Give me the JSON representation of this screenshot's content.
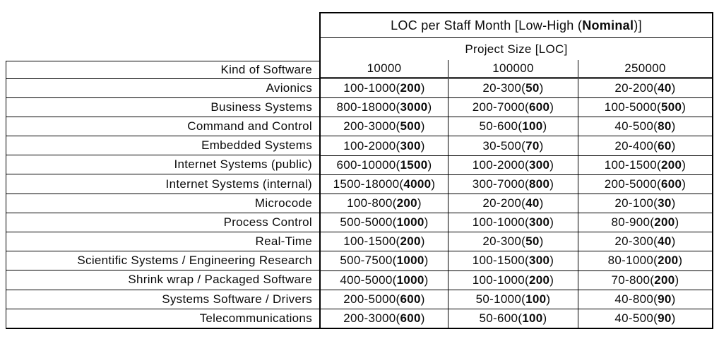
{
  "table": {
    "title": {
      "prefix": "LOC per Staff Month [Low-High (",
      "bold": "Nominal",
      "suffix": ")]"
    },
    "subtitle": "Project Size [LOC]",
    "corner_header": "Kind of Software",
    "size_columns": [
      "10000",
      "100000",
      "250000"
    ],
    "rows": [
      {
        "label": "Avionics",
        "cells": [
          {
            "range": "100-1000",
            "nominal": "200"
          },
          {
            "range": "20-300",
            "nominal": "50"
          },
          {
            "range": "20-200",
            "nominal": "40"
          }
        ]
      },
      {
        "label": "Business Systems",
        "cells": [
          {
            "range": "800-18000",
            "nominal": "3000"
          },
          {
            "range": "200-7000",
            "nominal": "600"
          },
          {
            "range": "100-5000",
            "nominal": "500"
          }
        ]
      },
      {
        "label": "Command and Control",
        "cells": [
          {
            "range": "200-3000",
            "nominal": "500"
          },
          {
            "range": "50-600",
            "nominal": "100"
          },
          {
            "range": "40-500",
            "nominal": "80"
          }
        ]
      },
      {
        "label": "Embedded Systems",
        "cells": [
          {
            "range": "100-2000",
            "nominal": "300"
          },
          {
            "range": "30-500",
            "nominal": "70"
          },
          {
            "range": "20-400",
            "nominal": "60"
          }
        ]
      },
      {
        "label": "Internet Systems (public)",
        "cells": [
          {
            "range": "600-10000",
            "nominal": "1500"
          },
          {
            "range": "100-2000",
            "nominal": "300"
          },
          {
            "range": "100-1500",
            "nominal": "200"
          }
        ]
      },
      {
        "label": "Internet Systems (internal)",
        "cells": [
          {
            "range": "1500-18000",
            "nominal": "4000"
          },
          {
            "range": "300-7000",
            "nominal": "800"
          },
          {
            "range": "200-5000",
            "nominal": "600"
          }
        ]
      },
      {
        "label": "Microcode",
        "cells": [
          {
            "range": "100-800",
            "nominal": "200"
          },
          {
            "range": "20-200",
            "nominal": "40"
          },
          {
            "range": "20-100",
            "nominal": "30"
          }
        ]
      },
      {
        "label": "Process Control",
        "cells": [
          {
            "range": "500-5000",
            "nominal": "1000"
          },
          {
            "range": "100-1000",
            "nominal": "300"
          },
          {
            "range": "80-900",
            "nominal": "200"
          }
        ]
      },
      {
        "label": "Real-Time",
        "cells": [
          {
            "range": "100-1500",
            "nominal": "200"
          },
          {
            "range": "20-300",
            "nominal": "50"
          },
          {
            "range": "20-300",
            "nominal": "40"
          }
        ]
      },
      {
        "label": "Scientific Systems / Engineering Research",
        "cells": [
          {
            "range": "500-7500",
            "nominal": "1000"
          },
          {
            "range": "100-1500",
            "nominal": "300"
          },
          {
            "range": "80-1000",
            "nominal": "200"
          }
        ]
      },
      {
        "label": "Shrink wrap / Packaged Software",
        "cells": [
          {
            "range": "400-5000",
            "nominal": "1000"
          },
          {
            "range": "100-1000",
            "nominal": "200"
          },
          {
            "range": "70-800",
            "nominal": "200"
          }
        ]
      },
      {
        "label": "Systems Software / Drivers",
        "cells": [
          {
            "range": "200-5000",
            "nominal": "600"
          },
          {
            "range": "50-1000",
            "nominal": "100"
          },
          {
            "range": "40-800",
            "nominal": "90"
          }
        ]
      },
      {
        "label": "Telecommunications",
        "cells": [
          {
            "range": "200-3000",
            "nominal": "600"
          },
          {
            "range": "50-600",
            "nominal": "100"
          },
          {
            "range": "40-500",
            "nominal": "90"
          }
        ]
      }
    ]
  }
}
